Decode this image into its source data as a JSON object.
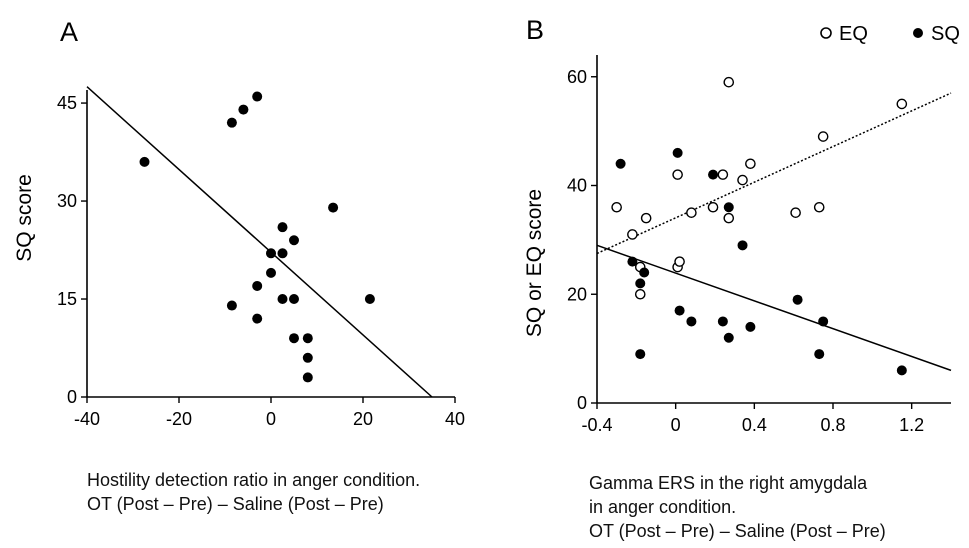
{
  "colors": {
    "axis": "#000000",
    "filled": "#000000",
    "open_fill": "#ffffff"
  },
  "chart_data": [
    {
      "panel_label": "A",
      "type": "scatter",
      "ylabel": "SQ score",
      "xlabel_lines": [
        "Hostility detection ratio in anger condition.",
        "OT (Post – Pre) – Saline (Post – Pre)"
      ],
      "xlim": [
        -40,
        40
      ],
      "ylim": [
        0,
        47
      ],
      "xticks": [
        -40,
        -20,
        0,
        20,
        40
      ],
      "yticks": [
        0,
        15,
        30,
        45
      ],
      "grid": false,
      "series": [
        {
          "marker": "filled",
          "points": [
            [
              -27.5,
              36
            ],
            [
              -8.5,
              42
            ],
            [
              -6,
              44
            ],
            [
              -3,
              46
            ],
            [
              -8.5,
              14
            ],
            [
              -3,
              12
            ],
            [
              -3,
              17
            ],
            [
              0,
              19
            ],
            [
              0,
              22
            ],
            [
              2.5,
              26
            ],
            [
              2.5,
              22
            ],
            [
              5,
              24
            ],
            [
              2.5,
              15
            ],
            [
              5,
              15
            ],
            [
              5,
              9
            ],
            [
              8,
              9
            ],
            [
              8,
              6
            ],
            [
              8,
              3
            ],
            [
              13.5,
              29
            ],
            [
              21.5,
              15
            ]
          ],
          "fit": [
            [
              -40,
              47.5
            ],
            [
              35,
              0
            ]
          ]
        }
      ]
    },
    {
      "panel_label": "B",
      "type": "scatter",
      "ylabel": "SQ or EQ score",
      "xlabel_lines": [
        "Gamma ERS in the right amygdala",
        "in anger condition.",
        "OT (Post – Pre) – Saline (Post – Pre)"
      ],
      "xlim": [
        -0.4,
        1.4
      ],
      "ylim": [
        0,
        64
      ],
      "xticks": [
        -0.4,
        0,
        0.4,
        0.8,
        1.2
      ],
      "xtick_labels": [
        "-0.4",
        "0",
        "0.4",
        "0.8",
        "1.2"
      ],
      "yticks": [
        0,
        20,
        40,
        60
      ],
      "grid": false,
      "legend_position": "top-right",
      "series": [
        {
          "name": "EQ",
          "marker": "open",
          "line_style": "dotted",
          "points": [
            [
              -0.3,
              36
            ],
            [
              -0.22,
              31
            ],
            [
              -0.15,
              34
            ],
            [
              -0.18,
              25
            ],
            [
              -0.18,
              20
            ],
            [
              0.01,
              42
            ],
            [
              0.01,
              25
            ],
            [
              0.02,
              26
            ],
            [
              0.08,
              35
            ],
            [
              0.19,
              36
            ],
            [
              0.24,
              42
            ],
            [
              0.27,
              59
            ],
            [
              0.27,
              34
            ],
            [
              0.34,
              41
            ],
            [
              0.38,
              44
            ],
            [
              0.61,
              35
            ],
            [
              0.73,
              36
            ],
            [
              0.75,
              49
            ],
            [
              1.15,
              55
            ]
          ],
          "fit": [
            [
              -0.4,
              27.5
            ],
            [
              1.4,
              57
            ]
          ]
        },
        {
          "name": "SQ",
          "marker": "filled",
          "line_style": "solid",
          "points": [
            [
              -0.28,
              44
            ],
            [
              -0.22,
              26
            ],
            [
              -0.18,
              22
            ],
            [
              -0.16,
              24
            ],
            [
              -0.18,
              9
            ],
            [
              0.01,
              46
            ],
            [
              0.02,
              17
            ],
            [
              0.08,
              15
            ],
            [
              0.19,
              42
            ],
            [
              0.24,
              15
            ],
            [
              0.27,
              36
            ],
            [
              0.27,
              12
            ],
            [
              0.34,
              29
            ],
            [
              0.38,
              14
            ],
            [
              0.62,
              19
            ],
            [
              0.73,
              9
            ],
            [
              0.75,
              15
            ],
            [
              1.15,
              6
            ]
          ],
          "fit": [
            [
              -0.4,
              29
            ],
            [
              1.4,
              6
            ]
          ]
        }
      ]
    }
  ]
}
